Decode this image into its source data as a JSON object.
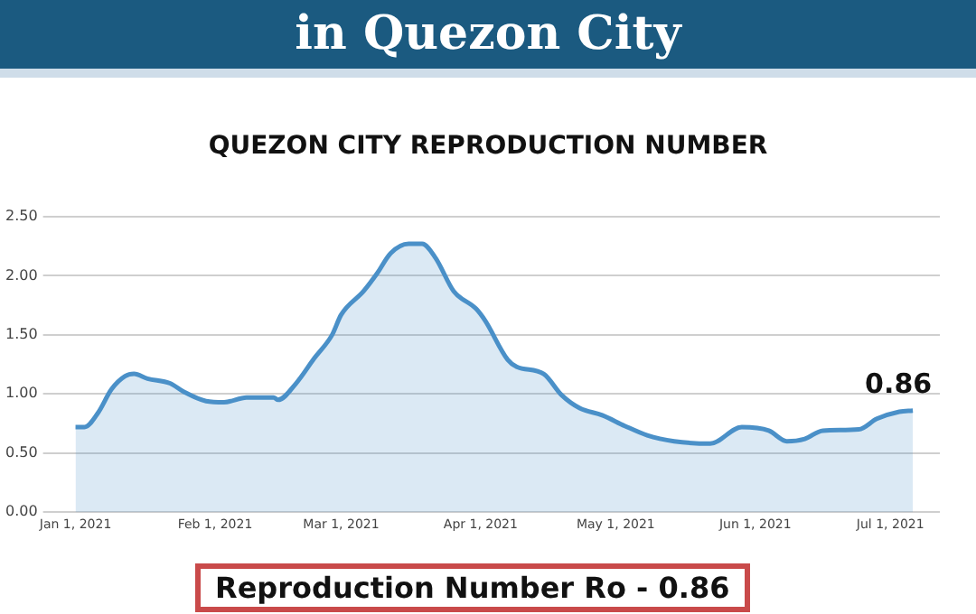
{
  "chart_data": {
    "type": "area",
    "title": "QUEZON CITY REPRODUCTION NUMBER",
    "x": [
      "2021-01-01",
      "2021-01-03",
      "2021-01-06",
      "2021-01-09",
      "2021-01-12",
      "2021-01-14",
      "2021-01-17",
      "2021-01-22",
      "2021-01-25",
      "2021-01-30",
      "2021-02-03",
      "2021-02-08",
      "2021-02-14",
      "2021-02-15",
      "2021-02-19",
      "2021-02-23",
      "2021-02-27",
      "2021-03-01",
      "2021-03-06",
      "2021-03-09",
      "2021-03-12",
      "2021-03-16",
      "2021-03-19",
      "2021-03-22",
      "2021-03-26",
      "2021-03-31",
      "2021-04-02",
      "2021-04-07",
      "2021-04-09",
      "2021-04-15",
      "2021-04-19",
      "2021-04-23",
      "2021-04-28",
      "2021-05-03",
      "2021-05-08",
      "2021-05-14",
      "2021-05-22",
      "2021-05-29",
      "2021-06-04",
      "2021-06-08",
      "2021-06-12",
      "2021-06-16",
      "2021-06-24",
      "2021-06-28",
      "2021-07-03",
      "2021-07-06"
    ],
    "series": [
      {
        "color": "#4a90c8",
        "values": [
          0.72,
          0.72,
          0.84,
          1.04,
          1.15,
          1.17,
          1.13,
          1.09,
          1.02,
          0.94,
          0.93,
          0.97,
          0.97,
          0.95,
          1.09,
          1.3,
          1.5,
          1.67,
          1.87,
          2.02,
          2.19,
          2.27,
          2.27,
          2.15,
          1.87,
          1.72,
          1.62,
          1.29,
          1.23,
          1.17,
          0.99,
          0.88,
          0.82,
          0.73,
          0.65,
          0.6,
          0.58,
          0.72,
          0.69,
          0.6,
          0.62,
          0.69,
          0.7,
          0.79,
          0.85,
          0.86
        ]
      }
    ],
    "xlim": [
      "2020-12-28",
      "2021-07-12"
    ],
    "xticks": [
      {
        "value": "2021-01-01",
        "label": "Jan 1, 2021"
      },
      {
        "value": "2021-02-01",
        "label": "Feb 1, 2021"
      },
      {
        "value": "2021-03-01",
        "label": "Mar 1, 2021"
      },
      {
        "value": "2021-04-01",
        "label": "Apr 1, 2021"
      },
      {
        "value": "2021-05-01",
        "label": "May 1, 2021"
      },
      {
        "value": "2021-06-01",
        "label": "Jun 1, 2021"
      },
      {
        "value": "2021-07-01",
        "label": "Jul 1, 2021"
      }
    ],
    "ylim": [
      0,
      2.5
    ],
    "yticks": [
      {
        "value": 0,
        "label": "0.00"
      },
      {
        "value": 0.5,
        "label": "0.50"
      },
      {
        "value": 1,
        "label": "1.00"
      },
      {
        "value": 1.5,
        "label": "1.50"
      },
      {
        "value": 2,
        "label": "2.00"
      },
      {
        "value": 2.5,
        "label": "2.50"
      }
    ],
    "grid": "y",
    "legend": false,
    "marker": "none",
    "annotations": [
      "in Quezon City",
      {
        "text": "0.86",
        "x": "2021-07-06",
        "y": 0.86
      },
      "Reproduction Number Ro - 0.86"
    ]
  }
}
